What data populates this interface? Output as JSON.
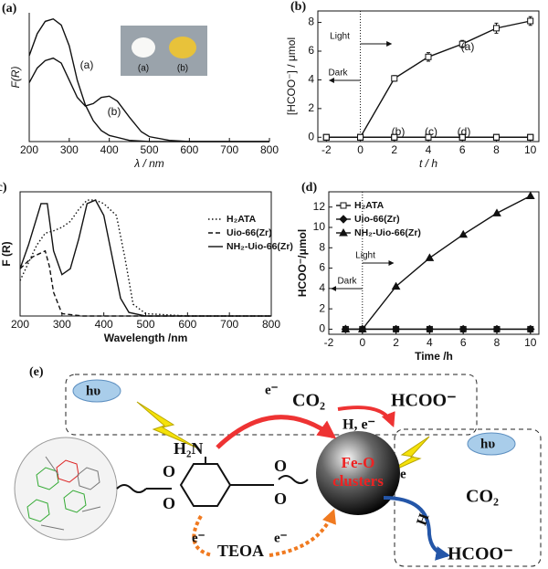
{
  "chart_data": [
    {
      "type": "line",
      "panel": "(a)",
      "xlabel": "λ / nm",
      "ylabel": "F(R)",
      "frame": "open",
      "xlim": [
        200,
        800
      ],
      "xticks": [
        200,
        300,
        400,
        500,
        600,
        700,
        800
      ],
      "ylim": [
        0,
        1.05
      ],
      "inset": {
        "labels": [
          "(a)",
          "(b)"
        ]
      },
      "series": [
        {
          "name": "(a)",
          "color": "#111",
          "line_style": "solid",
          "x": [
            200,
            220,
            240,
            260,
            280,
            300,
            320,
            340,
            360,
            380,
            400,
            450,
            500,
            600,
            700,
            800
          ],
          "values": [
            0.7,
            0.88,
            0.98,
            1.0,
            0.95,
            0.78,
            0.5,
            0.3,
            0.17,
            0.09,
            0.05,
            0.01,
            0,
            0,
            0,
            0
          ]
        },
        {
          "name": "(b)",
          "color": "#111",
          "line_style": "solid",
          "x": [
            200,
            220,
            240,
            260,
            280,
            300,
            320,
            340,
            360,
            380,
            400,
            420,
            450,
            480,
            500,
            550,
            600,
            700,
            800
          ],
          "values": [
            0.48,
            0.6,
            0.66,
            0.68,
            0.64,
            0.5,
            0.36,
            0.29,
            0.31,
            0.36,
            0.37,
            0.33,
            0.2,
            0.08,
            0.04,
            0.01,
            0,
            0,
            0
          ]
        }
      ]
    },
    {
      "type": "line",
      "panel": "(b)",
      "xlabel": "t / h",
      "ylabel": "[HCOO⁻] / μmol",
      "frame": "box",
      "xlim": [
        -2.5,
        10.5
      ],
      "xticks": [
        -2,
        0,
        2,
        4,
        6,
        8,
        10
      ],
      "ylim": [
        -0.3,
        8.8
      ],
      "yticks": [
        0,
        2,
        4,
        6,
        8
      ],
      "divider_x": 0,
      "annotations": [
        "Light",
        "Dark"
      ],
      "series": [
        {
          "name": "(a)",
          "color": "#111",
          "line_style": "solid",
          "marker": "square",
          "x": [
            0,
            2,
            4,
            6,
            8,
            10
          ],
          "values": [
            0,
            4.1,
            5.6,
            6.5,
            7.6,
            8.1
          ],
          "errors": [
            null,
            0.2,
            0.3,
            0.25,
            0.35,
            0.3
          ]
        },
        {
          "name": "(b)",
          "color": "#111",
          "line_style": "solid",
          "marker": "square",
          "x": [
            -2,
            0,
            2,
            4,
            6,
            8,
            10
          ],
          "values": [
            0,
            0,
            0,
            0,
            0,
            0,
            0
          ]
        },
        {
          "name": "(c)",
          "color": "#111",
          "line_style": "solid",
          "marker": "square",
          "x": [
            -2,
            0,
            2,
            4,
            6,
            8,
            10
          ],
          "values": [
            0,
            0,
            0,
            0,
            0,
            0,
            0
          ]
        },
        {
          "name": "(d)",
          "color": "#111",
          "line_style": "solid",
          "marker": "square",
          "x": [
            -2,
            0,
            2,
            4,
            6,
            8,
            10
          ],
          "values": [
            0,
            0,
            0,
            0,
            0,
            0,
            0
          ]
        }
      ]
    },
    {
      "type": "line",
      "panel": "(c)",
      "xlabel": "Wavelength /nm",
      "ylabel": "F (R)",
      "frame": "box",
      "legend": "upper right",
      "xlim": [
        200,
        800
      ],
      "xticks": [
        200,
        300,
        400,
        500,
        600,
        700,
        800
      ],
      "ylim": [
        0,
        1.05
      ],
      "series": [
        {
          "name": "H₂ATA",
          "color": "#111",
          "line_style": "dotted",
          "x": [
            200,
            220,
            240,
            260,
            280,
            300,
            320,
            340,
            360,
            380,
            400,
            430,
            450,
            470,
            500,
            600,
            800
          ],
          "values": [
            0.3,
            0.45,
            0.6,
            0.7,
            0.72,
            0.75,
            0.8,
            0.9,
            0.98,
            0.98,
            0.95,
            0.85,
            0.5,
            0.1,
            0.02,
            0,
            0
          ]
        },
        {
          "name": "Uio-66(Zr)",
          "color": "#111",
          "line_style": "dashed",
          "x": [
            200,
            230,
            260,
            270,
            280,
            300,
            350,
            800
          ],
          "values": [
            0.4,
            0.5,
            0.55,
            0.42,
            0.2,
            0.02,
            0,
            0
          ]
        },
        {
          "name": "NH₂-Uio-66(Zr)",
          "color": "#111",
          "line_style": "solid",
          "x": [
            200,
            220,
            250,
            265,
            280,
            300,
            320,
            340,
            360,
            380,
            400,
            420,
            440,
            460,
            500,
            800
          ],
          "values": [
            0.4,
            0.6,
            0.95,
            0.95,
            0.55,
            0.35,
            0.4,
            0.65,
            0.95,
            0.98,
            0.85,
            0.5,
            0.15,
            0.03,
            0,
            0
          ]
        }
      ]
    },
    {
      "type": "line",
      "panel": "(d)",
      "xlabel": "Time /h",
      "ylabel": "HCOO⁻/μmol",
      "frame": "box",
      "legend": "upper left",
      "xlim": [
        -2,
        10.5
      ],
      "xticks": [
        -2,
        0,
        2,
        4,
        6,
        8,
        10
      ],
      "ylim": [
        -0.5,
        13.5
      ],
      "yticks": [
        0,
        2,
        4,
        6,
        8,
        10,
        12
      ],
      "divider_x": 0,
      "annotations": [
        "Light",
        "Dark"
      ],
      "series": [
        {
          "name": "H₂ATA",
          "color": "#111",
          "line_style": "solid",
          "marker": "square",
          "x": [
            -1,
            0,
            2,
            4,
            6,
            8,
            10
          ],
          "values": [
            0,
            0,
            0,
            0,
            0,
            0,
            0
          ]
        },
        {
          "name": "Uio-66(Zr)",
          "color": "#111",
          "line_style": "solid",
          "marker": "diamond",
          "x": [
            -1,
            0,
            2,
            4,
            6,
            8,
            10
          ],
          "values": [
            0,
            0,
            0,
            0,
            0,
            0,
            0
          ]
        },
        {
          "name": "NH₂-Uio-66(Zr)",
          "color": "#111",
          "line_style": "solid",
          "marker": "triangle",
          "x": [
            -1,
            0,
            2,
            4,
            6,
            8,
            10
          ],
          "values": [
            0,
            0,
            4.2,
            7.0,
            9.3,
            11.4,
            13.1
          ]
        }
      ]
    }
  ],
  "diagram": {
    "panel": "(e)",
    "hv_left": "hυ",
    "hv_right": "hυ",
    "amine": "H₂N",
    "e_top": "e⁻",
    "co2_top": "CO₂",
    "hcoo_top": "HCOO⁻",
    "h_e": "H, e⁻",
    "cluster_1": "Fe-O",
    "cluster_2": "clusters",
    "e_right": "e",
    "co2_right": "CO₂",
    "h_right": "H",
    "hcoo_right": "HCOO⁻",
    "e_left_bottom": "e⁻",
    "e_right_bottom": "e⁻",
    "teoa": "TEOA",
    "o1": "O",
    "o2": "O",
    "o3": "O",
    "o4": "O"
  }
}
